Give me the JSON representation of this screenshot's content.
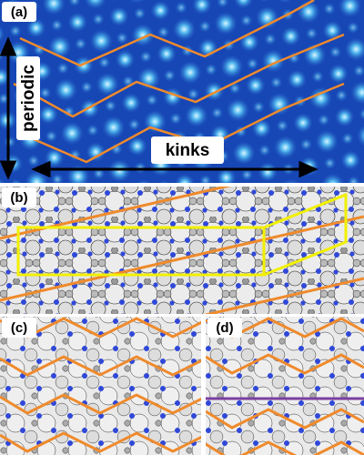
{
  "panels": [
    {
      "label": "(a)",
      "annotations": {
        "vertical": "periodic",
        "horizontal": "kinks"
      }
    },
    {
      "label": "(b)"
    },
    {
      "label": "(c)"
    },
    {
      "label": "(d)"
    }
  ]
}
